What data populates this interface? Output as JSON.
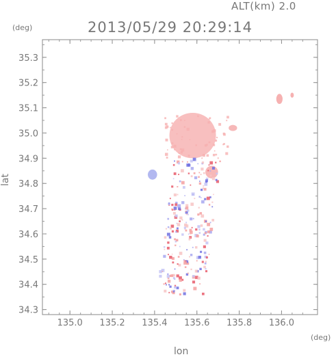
{
  "header": {
    "alt_label": "ALT(km) 2.0",
    "time_label": "2013/05/29 20:29:14",
    "y_unit": "(deg)",
    "x_unit": "(deg)",
    "xlabel": "lon",
    "ylabel": "lat"
  },
  "chart_data": {
    "type": "heatmap",
    "title": "2013/05/29 20:29:14",
    "subtitle": "ALT(km) 2.0",
    "xlabel": "lon",
    "ylabel": "lat",
    "x_unit": "(deg)",
    "y_unit": "(deg)",
    "xlim": [
      134.87,
      136.17
    ],
    "ylim": [
      34.28,
      35.37
    ],
    "xticks": [
      135.0,
      135.2,
      135.4,
      135.6,
      135.8,
      136.0
    ],
    "yticks": [
      34.3,
      34.4,
      34.5,
      34.6,
      34.7,
      34.8,
      34.9,
      35.0,
      35.1,
      35.2,
      35.3
    ],
    "xtick_labels": [
      "135.0",
      "135.2",
      "135.4",
      "135.6",
      "135.8",
      "136.0"
    ],
    "ytick_labels": [
      "34.3",
      "34.4",
      "34.5",
      "34.6",
      "34.7",
      "34.8",
      "34.9",
      "35.0",
      "35.1",
      "35.2",
      "35.3"
    ],
    "colors": {
      "positive": "#f4a0a0",
      "positive_strong": "#e85a6a",
      "negative": "#a8a8f0",
      "negative_strong": "#7070e0"
    },
    "regions": [
      {
        "name": "main-cluster",
        "lon": 135.58,
        "lat": 34.99,
        "rlon": 0.11,
        "rlat": 0.09,
        "color": "#f7b8b8"
      },
      {
        "name": "west-patch",
        "lon": 135.39,
        "lat": 34.835,
        "rlon": 0.022,
        "rlat": 0.02,
        "color": "#aab0ee"
      },
      {
        "name": "east-patch",
        "lon": 135.67,
        "lat": 34.845,
        "rlon": 0.03,
        "rlat": 0.025,
        "color": "#f6b0b0"
      },
      {
        "name": "ne-patch-1",
        "lon": 135.99,
        "lat": 35.135,
        "rlon": 0.015,
        "rlat": 0.02,
        "color": "#f5a8a8"
      },
      {
        "name": "ne-patch-2",
        "lon": 136.05,
        "lat": 35.15,
        "rlon": 0.008,
        "rlat": 0.01,
        "color": "#f5a8a8"
      },
      {
        "name": "ne-patch-3",
        "lon": 135.77,
        "lat": 35.02,
        "rlon": 0.02,
        "rlat": 0.012,
        "color": "#f5b0b0"
      }
    ]
  }
}
